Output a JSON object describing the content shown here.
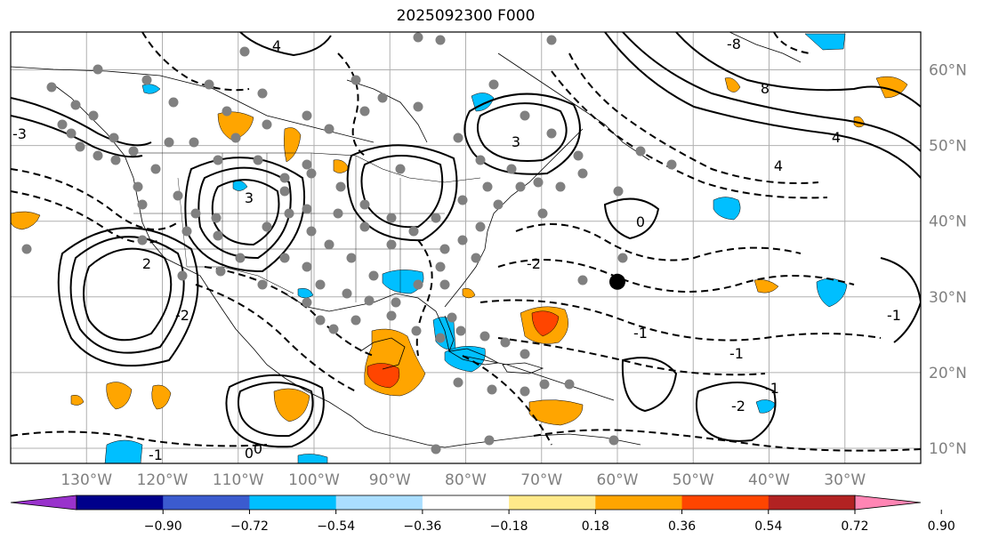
{
  "title": "2025092300 F000",
  "map": {
    "lon_range": [
      -140,
      -20
    ],
    "lat_range": [
      8,
      65
    ],
    "grid": true,
    "lon_ticks": [
      {
        "value": -130,
        "label": "130°W"
      },
      {
        "value": -120,
        "label": "120°W"
      },
      {
        "value": -110,
        "label": "110°W"
      },
      {
        "value": -100,
        "label": "100°W"
      },
      {
        "value": -90,
        "label": "90°W"
      },
      {
        "value": -80,
        "label": "80°W"
      },
      {
        "value": -70,
        "label": "70°W"
      },
      {
        "value": -60,
        "label": "60°W"
      },
      {
        "value": -50,
        "label": "50°W"
      },
      {
        "value": -40,
        "label": "40°W"
      },
      {
        "value": -30,
        "label": "30°W"
      }
    ],
    "lat_ticks": [
      {
        "value": 60,
        "label": "60°N"
      },
      {
        "value": 50,
        "label": "50°N"
      },
      {
        "value": 40,
        "label": "40°N"
      },
      {
        "value": 30,
        "label": "30°N"
      },
      {
        "value": 20,
        "label": "20°N"
      },
      {
        "value": 10,
        "label": "10°N"
      }
    ],
    "contour_labels": [
      "4",
      "3",
      "2",
      "-3",
      "3",
      "4",
      "-2",
      "-8",
      "8",
      "4",
      "-1",
      "0",
      "-1",
      "0",
      "-2",
      "-1",
      "-2",
      "-1",
      "0",
      "-1"
    ],
    "contour_colors": {
      "positive": "#000000",
      "negative": "#000000"
    },
    "storm_marker": {
      "lon": -60,
      "lat": 32,
      "color": "#000000"
    },
    "obs_marker_color": "#808080"
  },
  "colorbar": {
    "colors": [
      "#9932cc",
      "#00008b",
      "#3b5bcf",
      "#00bfff",
      "#aadeff",
      "#ffffff",
      "#ffe98a",
      "#ffa500",
      "#ff4500",
      "#b22222",
      "#ff85b4"
    ],
    "tick_labels": [
      "−0.90",
      "−0.72",
      "−0.54",
      "−0.36",
      "−0.18",
      "0.18",
      "0.36",
      "0.54",
      "0.72",
      "0.90"
    ]
  }
}
